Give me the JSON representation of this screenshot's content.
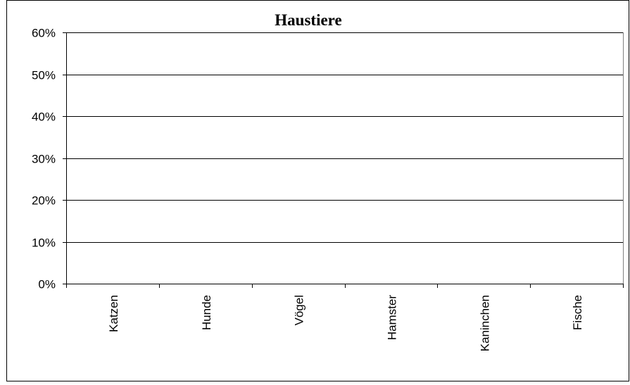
{
  "chart_data": {
    "type": "bar",
    "title": "Haustiere",
    "xlabel": "",
    "ylabel": "",
    "categories": [
      "Katzen",
      "Hunde",
      "Vögel",
      "Hamster",
      "Kaninchen",
      "Fische"
    ],
    "values": [
      null,
      null,
      null,
      null,
      null,
      null
    ],
    "ylim": [
      0,
      0.6
    ],
    "yticks": [
      0,
      0.1,
      0.2,
      0.3,
      0.4,
      0.5,
      0.6
    ],
    "ytick_labels": [
      "0%",
      "10%",
      "20%",
      "30%",
      "40%",
      "50%",
      "60%"
    ],
    "grid": true,
    "legend": "none",
    "colors": {
      "background": "#ffffff",
      "frame": "#000000",
      "grid": "#000000",
      "plot_border": "#808080"
    }
  }
}
